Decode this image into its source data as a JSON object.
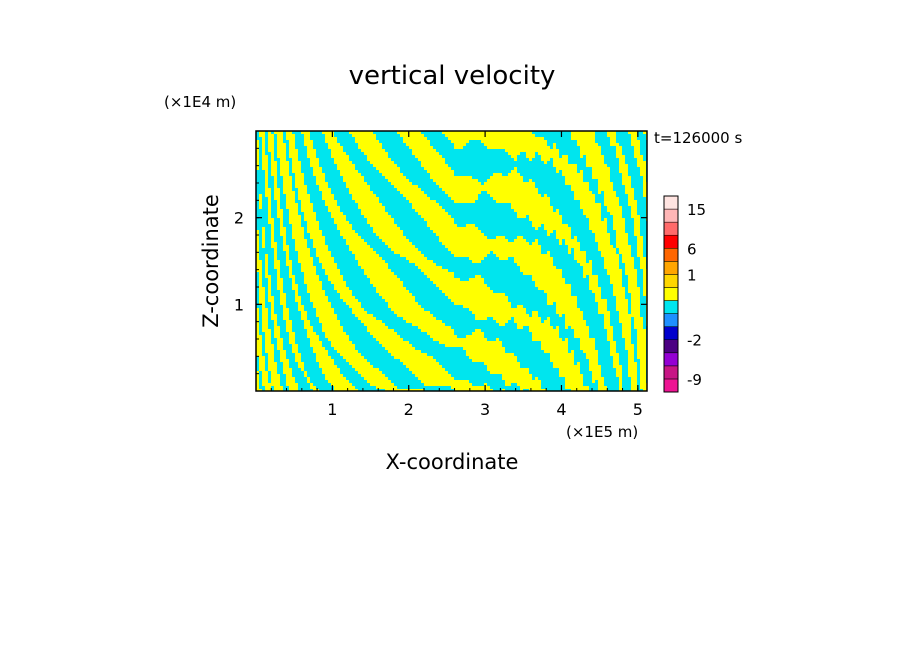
{
  "chart_data": {
    "type": "heatmap",
    "title": "vertical velocity",
    "xlabel": "X-coordinate",
    "ylabel": "Z-coordinate",
    "x_unit": "(×1E5 m)",
    "y_unit": "(×1E4 m)",
    "time_label": "t=126000 s",
    "xlim": [
      0,
      5.12
    ],
    "ylim": [
      0,
      3.0
    ],
    "x_ticks": [
      1,
      2,
      3,
      4,
      5
    ],
    "y_ticks": [
      1,
      2
    ],
    "field_colors": {
      "positive": "#ffff00",
      "negative": "#00e5ee"
    },
    "colorbar": {
      "tick_labels": [
        "15",
        "6",
        "1",
        "-2",
        "-9"
      ],
      "tick_values": [
        15,
        6,
        1,
        -2,
        -9
      ],
      "levels": [
        {
          "from": -12,
          "to": -9,
          "color": "#ee1493"
        },
        {
          "from": -9,
          "to": -6,
          "color": "#c71585"
        },
        {
          "from": -6,
          "to": -4,
          "color": "#9400d3"
        },
        {
          "from": -4,
          "to": -2,
          "color": "#4b0082"
        },
        {
          "from": -2,
          "to": -1,
          "color": "#0000cd"
        },
        {
          "from": -1,
          "to": -0.5,
          "color": "#1e90ff"
        },
        {
          "from": -0.5,
          "to": 0,
          "color": "#00e5ee"
        },
        {
          "from": 0,
          "to": 0.5,
          "color": "#ffff00"
        },
        {
          "from": 0.5,
          "to": 1,
          "color": "#ffd700"
        },
        {
          "from": 1,
          "to": 2,
          "color": "#ffa500"
        },
        {
          "from": 2,
          "to": 6,
          "color": "#ff6600"
        },
        {
          "from": 6,
          "to": 9,
          "color": "#ff0000"
        },
        {
          "from": 9,
          "to": 12,
          "color": "#ff6a6a"
        },
        {
          "from": 12,
          "to": 15,
          "color": "#ffb6b6"
        },
        {
          "from": 15,
          "to": 20,
          "color": "#ffe4e1"
        }
      ]
    }
  }
}
